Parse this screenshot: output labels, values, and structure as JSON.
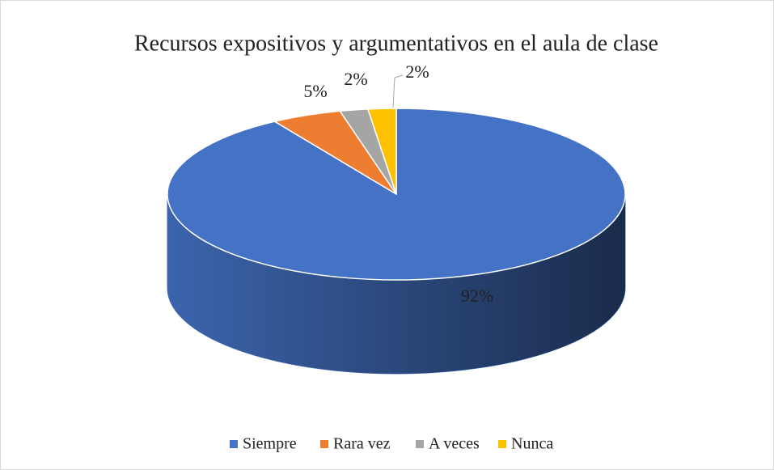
{
  "chart_data": {
    "type": "pie3d",
    "title": "Recursos expositivos y argumentativos en el aula de clase",
    "categories": [
      "Siempre",
      "Rara vez",
      "A veces",
      "Nunca"
    ],
    "values": [
      92,
      5,
      2,
      2
    ],
    "value_labels": [
      "92%",
      "5%",
      "2%",
      "2%"
    ],
    "colors": [
      "#4472c4",
      "#ed7d31",
      "#a5a5a5",
      "#ffc000"
    ],
    "legend": "bottom"
  }
}
